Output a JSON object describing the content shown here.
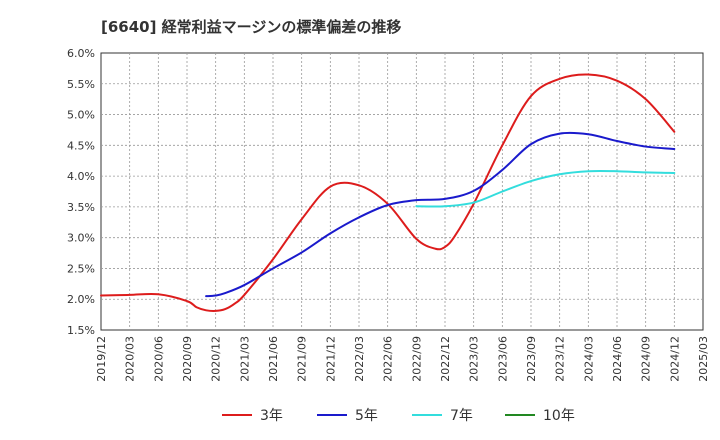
{
  "chart_data": {
    "type": "line",
    "title": "[6640]  経常利益マージンの標準偏差の推移",
    "xlabel": "",
    "ylabel": "",
    "x_ticks": [
      "2019/12",
      "2020/03",
      "2020/06",
      "2020/09",
      "2020/12",
      "2021/03",
      "2021/06",
      "2021/09",
      "2021/12",
      "2022/03",
      "2022/06",
      "2022/09",
      "2022/12",
      "2023/03",
      "2023/06",
      "2023/09",
      "2023/12",
      "2024/03",
      "2024/06",
      "2024/09",
      "2024/12",
      "2025/03"
    ],
    "y_ticks": [
      "1.5%",
      "2.0%",
      "2.5%",
      "3.0%",
      "3.5%",
      "4.0%",
      "4.5%",
      "5.0%",
      "5.5%",
      "6.0%"
    ],
    "ylim": [
      1.5,
      6.0
    ],
    "grid": true,
    "legend_position": "bottom",
    "series": [
      {
        "name": "3年",
        "color": "#dd1c1c",
        "x": [
          "2019/12",
          "2020/03",
          "2020/06",
          "2020/09",
          "2020/10",
          "2020/11",
          "2020/12",
          "2021/01",
          "2021/02",
          "2021/03",
          "2021/06",
          "2021/09",
          "2021/12",
          "2022/03",
          "2022/06",
          "2022/09",
          "2022/11",
          "2022/12",
          "2023/01",
          "2023/03",
          "2023/06",
          "2023/09",
          "2023/12",
          "2024/03",
          "2024/06",
          "2024/09",
          "2024/12"
        ],
        "values": [
          2.06,
          2.07,
          2.08,
          1.97,
          1.87,
          1.82,
          1.81,
          1.84,
          1.93,
          2.07,
          2.65,
          3.3,
          3.83,
          3.85,
          3.55,
          2.98,
          2.82,
          2.85,
          3.02,
          3.55,
          4.5,
          5.3,
          5.58,
          5.65,
          5.55,
          5.25,
          4.72
        ]
      },
      {
        "name": "5年",
        "color": "#1a1acc",
        "x": [
          "2020/11",
          "2020/12",
          "2021/01",
          "2021/03",
          "2021/06",
          "2021/09",
          "2021/12",
          "2022/03",
          "2022/06",
          "2022/09",
          "2022/12",
          "2023/03",
          "2023/06",
          "2023/09",
          "2023/12",
          "2024/03",
          "2024/06",
          "2024/09",
          "2024/12"
        ],
        "values": [
          2.05,
          2.06,
          2.1,
          2.23,
          2.5,
          2.76,
          3.07,
          3.33,
          3.53,
          3.61,
          3.63,
          3.76,
          4.1,
          4.52,
          4.69,
          4.68,
          4.57,
          4.48,
          4.44
        ]
      },
      {
        "name": "7年",
        "color": "#33dddd",
        "x": [
          "2022/09",
          "2022/12",
          "2023/03",
          "2023/06",
          "2023/09",
          "2023/12",
          "2024/03",
          "2024/06",
          "2024/09",
          "2024/12"
        ],
        "values": [
          3.51,
          3.51,
          3.57,
          3.75,
          3.92,
          4.03,
          4.08,
          4.08,
          4.06,
          4.05
        ]
      },
      {
        "name": "10年",
        "color": "#228822",
        "x": [],
        "values": []
      }
    ]
  }
}
